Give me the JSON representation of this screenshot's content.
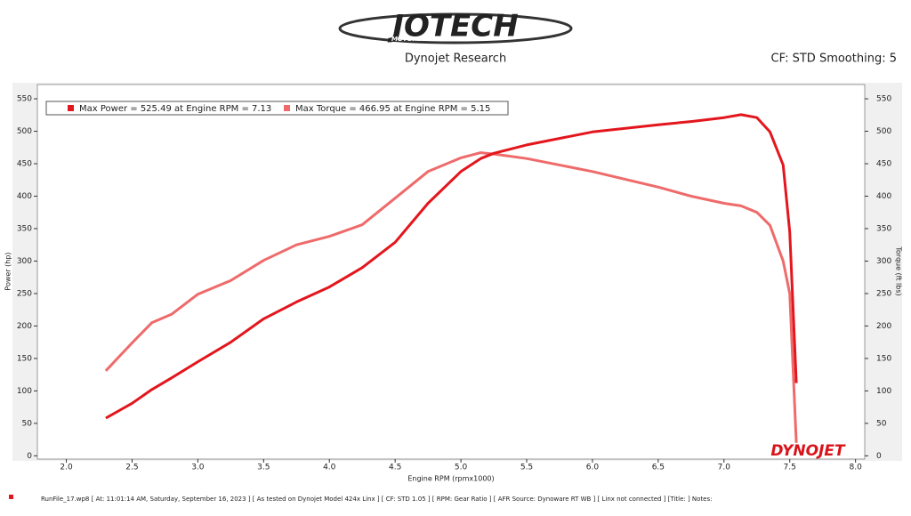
{
  "header": {
    "logo": "JOTECH",
    "logo_sub": "MOTORSPORTS",
    "subtitle": "Dynojet Research",
    "settings": "CF: STD Smoothing: 5"
  },
  "chart_data": {
    "type": "line",
    "xlabel": "Engine RPM (rpmx1000)",
    "ylabel": "Power (hp)",
    "y2label": "Torque (ft lbs)",
    "x": [
      2.3,
      2.5,
      2.65,
      2.8,
      3.0,
      3.25,
      3.5,
      3.75,
      4.0,
      4.25,
      4.5,
      4.75,
      5.0,
      5.15,
      5.25,
      5.5,
      6.0,
      6.5,
      6.75,
      7.0,
      7.13,
      7.25,
      7.35,
      7.45,
      7.5,
      7.55
    ],
    "series": [
      {
        "name": "Max Power = 525.49 at Engine RPM = 7.13",
        "color": "#e3161d",
        "values": [
          58,
          81,
          102,
          120,
          145,
          175,
          211,
          237,
          260,
          290,
          329,
          389,
          438,
          458,
          466,
          479,
          499,
          510,
          515,
          521,
          525.49,
          521,
          499,
          448,
          345,
          112
        ]
      },
      {
        "name": "Max Torque = 466.95 at Engine RPM = 5.15",
        "color": "#ef6a6a",
        "axis": "y2",
        "values": [
          131,
          174,
          205,
          218,
          249,
          270,
          301,
          325,
          338,
          356,
          397,
          438,
          459,
          466.95,
          465,
          458,
          438,
          414,
          400,
          389,
          385,
          375,
          355,
          300,
          250,
          20
        ]
      }
    ],
    "xlim": [
      1.78,
      8.07
    ],
    "xticks": [
      {
        "value": 2,
        "label": "2.0"
      },
      {
        "value": 2.5,
        "label": "2.5"
      },
      {
        "value": 3,
        "label": "3.0"
      },
      {
        "value": 3.5,
        "label": "3.5"
      },
      {
        "value": 4,
        "label": "4.0"
      },
      {
        "value": 4.5,
        "label": "4.5"
      },
      {
        "value": 5,
        "label": "5.0"
      },
      {
        "value": 5.5,
        "label": "5.5"
      },
      {
        "value": 6,
        "label": "6.0"
      },
      {
        "value": 6.5,
        "label": "6.5"
      },
      {
        "value": 7,
        "label": "7.0"
      },
      {
        "value": 7.5,
        "label": "7.5"
      },
      {
        "value": 8,
        "label": "8.0"
      }
    ],
    "ylim": [
      -5,
      572
    ],
    "yticks": [
      0,
      50,
      100,
      150,
      200,
      250,
      300,
      350,
      400,
      450,
      500,
      550
    ],
    "y2lim": [
      -5,
      572
    ],
    "y2ticks": [
      0,
      50,
      100,
      150,
      200,
      250,
      300,
      350,
      400,
      450,
      500,
      550
    ],
    "brand": "DYNOJET"
  },
  "footer": "RunFile_17.wp8 [ At: 11:01:14 AM, Saturday, September 16, 2023 ] [ As tested on Dynojet Model 424x Linx ] [ CF: STD 1.05 ] [ RPM: Gear Ratio ] [ AFR Source: Dynoware RT WB ] [ Linx not connected ] [Title: ]  Notes:"
}
